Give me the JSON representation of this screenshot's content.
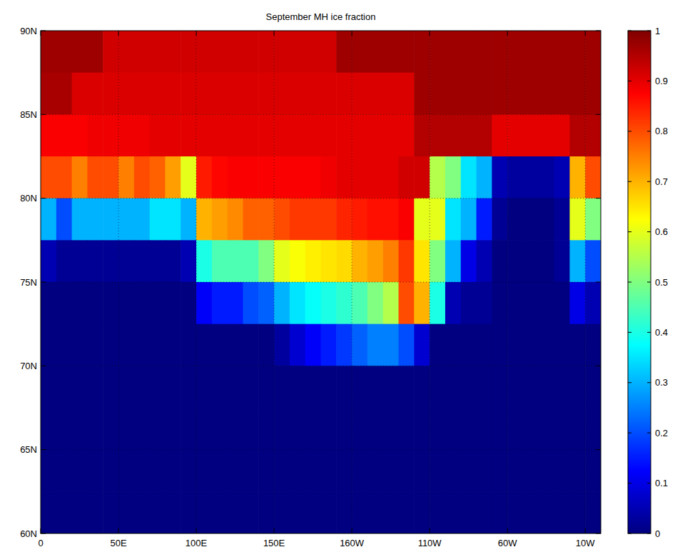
{
  "chart_data": {
    "type": "heatmap",
    "title": "September MH ice fraction",
    "x": [
      5,
      15,
      25,
      35,
      45,
      55,
      65,
      75,
      85,
      95,
      105,
      115,
      125,
      135,
      145,
      155,
      165,
      175,
      185,
      195,
      205,
      215,
      225,
      235,
      245,
      255,
      265,
      275,
      285,
      295,
      305,
      315,
      325,
      335,
      345,
      355
    ],
    "y": [
      88.75,
      86.25,
      83.75,
      81.25,
      78.75,
      76.25,
      73.75,
      71.25,
      68.75,
      66.25,
      63.75,
      61.25
    ],
    "cells": [
      [
        0.97,
        0.97,
        0.97,
        0.97,
        0.92,
        0.92,
        0.92,
        0.92,
        0.92,
        0.92,
        0.92,
        0.92,
        0.92,
        0.92,
        0.92,
        0.92,
        0.92,
        0.92,
        0.92,
        0.97,
        0.97,
        0.97,
        0.97,
        0.97,
        0.97,
        0.97,
        0.97,
        0.97,
        0.97,
        0.97,
        0.97,
        0.97,
        0.97,
        0.97,
        0.97,
        0.97
      ],
      [
        0.96,
        0.96,
        0.91,
        0.91,
        0.91,
        0.91,
        0.91,
        0.91,
        0.91,
        0.91,
        0.91,
        0.91,
        0.91,
        0.91,
        0.91,
        0.91,
        0.91,
        0.91,
        0.91,
        0.91,
        0.91,
        0.91,
        0.91,
        0.91,
        0.97,
        0.97,
        0.97,
        0.97,
        0.97,
        0.97,
        0.97,
        0.97,
        0.97,
        0.97,
        0.97,
        0.97
      ],
      [
        0.88,
        0.88,
        0.88,
        0.89,
        0.89,
        0.89,
        0.89,
        0.9,
        0.9,
        0.9,
        0.9,
        0.9,
        0.9,
        0.9,
        0.9,
        0.9,
        0.9,
        0.9,
        0.9,
        0.9,
        0.9,
        0.9,
        0.9,
        0.9,
        0.95,
        0.95,
        0.95,
        0.95,
        0.95,
        0.9,
        0.9,
        0.9,
        0.9,
        0.9,
        0.95,
        0.95
      ],
      [
        0.8,
        0.8,
        0.75,
        0.8,
        0.8,
        0.75,
        0.8,
        0.78,
        0.72,
        0.6,
        0.85,
        0.87,
        0.88,
        0.88,
        0.88,
        0.88,
        0.88,
        0.88,
        0.89,
        0.9,
        0.9,
        0.9,
        0.9,
        0.92,
        0.92,
        0.55,
        0.5,
        0.35,
        0.3,
        0.05,
        0.03,
        0.03,
        0.03,
        0.05,
        0.7,
        0.8
      ],
      [
        0.3,
        0.2,
        0.3,
        0.3,
        0.3,
        0.3,
        0.3,
        0.35,
        0.35,
        0.3,
        0.7,
        0.72,
        0.74,
        0.78,
        0.78,
        0.8,
        0.82,
        0.82,
        0.82,
        0.84,
        0.85,
        0.86,
        0.86,
        0.88,
        0.6,
        0.6,
        0.35,
        0.3,
        0.15,
        0.02,
        0,
        0,
        0,
        0.02,
        0.6,
        0.5
      ],
      [
        0.05,
        0.02,
        0.02,
        0.02,
        0.02,
        0.02,
        0.02,
        0.02,
        0.02,
        0.05,
        0.4,
        0.45,
        0.45,
        0.45,
        0.5,
        0.6,
        0.62,
        0.64,
        0.65,
        0.66,
        0.7,
        0.72,
        0.75,
        0.82,
        0.65,
        0.5,
        0.3,
        0.1,
        0.05,
        0,
        0,
        0,
        0,
        0.02,
        0.3,
        0.2
      ],
      [
        0,
        0,
        0,
        0,
        0,
        0,
        0,
        0,
        0,
        0,
        0.12,
        0.15,
        0.15,
        0.2,
        0.22,
        0.3,
        0.35,
        0.38,
        0.4,
        0.42,
        0.45,
        0.5,
        0.55,
        0.8,
        0.7,
        0.4,
        0.05,
        0.02,
        0.02,
        0,
        0,
        0,
        0,
        0,
        0.1,
        0.05
      ],
      [
        0,
        0,
        0,
        0,
        0,
        0,
        0,
        0,
        0,
        0,
        0,
        0,
        0,
        0,
        0,
        0.03,
        0.08,
        0.12,
        0.15,
        0.18,
        0.22,
        0.25,
        0.25,
        0.2,
        0.08,
        0,
        0,
        0,
        0,
        0,
        0,
        0,
        0,
        0,
        0,
        0
      ],
      [
        0,
        0,
        0,
        0,
        0,
        0,
        0,
        0,
        0,
        0,
        0,
        0,
        0,
        0,
        0,
        0,
        0,
        0,
        0,
        0,
        0,
        0,
        0,
        0,
        0,
        0,
        0,
        0,
        0,
        0,
        0,
        0,
        0,
        0,
        0,
        0
      ],
      [
        0,
        0,
        0,
        0,
        0,
        0,
        0,
        0,
        0,
        0,
        0,
        0,
        0,
        0,
        0,
        0,
        0,
        0,
        0,
        0,
        0,
        0,
        0,
        0,
        0,
        0,
        0,
        0,
        0,
        0,
        0,
        0,
        0,
        0,
        0,
        0
      ],
      [
        0,
        0,
        0,
        0,
        0,
        0,
        0,
        0,
        0,
        0,
        0,
        0,
        0,
        0,
        0,
        0,
        0,
        0,
        0,
        0,
        0,
        0,
        0,
        0,
        0,
        0,
        0,
        0,
        0,
        0,
        0,
        0,
        0,
        0,
        0,
        0
      ],
      [
        0,
        0,
        0,
        0,
        0,
        0,
        0,
        0,
        0,
        0,
        0,
        0,
        0,
        0,
        0,
        0,
        0,
        0,
        0,
        0,
        0,
        0,
        0,
        0,
        0,
        0,
        0,
        0,
        0,
        0,
        0,
        0,
        0,
        0,
        0,
        0
      ]
    ],
    "xlim": [
      0,
      360
    ],
    "ylim": [
      60,
      90
    ],
    "xticks": [
      0,
      {
        "value": 50,
        "label": "50E"
      },
      {
        "value": 100,
        "label": "100E"
      },
      {
        "value": 150,
        "label": "150E"
      },
      {
        "value": 200,
        "label": "160W"
      },
      {
        "value": 250,
        "label": "110W"
      },
      {
        "value": 300,
        "label": "60W"
      },
      {
        "value": 350,
        "label": "10W"
      }
    ],
    "yticks": [
      {
        "value": 60,
        "label": "60N"
      },
      {
        "value": 65,
        "label": "65N"
      },
      {
        "value": 70,
        "label": "70N"
      },
      {
        "value": 75,
        "label": "75N"
      },
      {
        "value": 80,
        "label": "80N"
      },
      {
        "value": 85,
        "label": "85N"
      },
      {
        "value": 90,
        "label": "90N"
      }
    ],
    "grid": true,
    "colorbar": {
      "range": [
        0,
        1
      ],
      "ticks": [
        0,
        0.1,
        0.2,
        0.3,
        0.4,
        0.5,
        0.6,
        0.7,
        0.8,
        0.9,
        1
      ]
    }
  }
}
